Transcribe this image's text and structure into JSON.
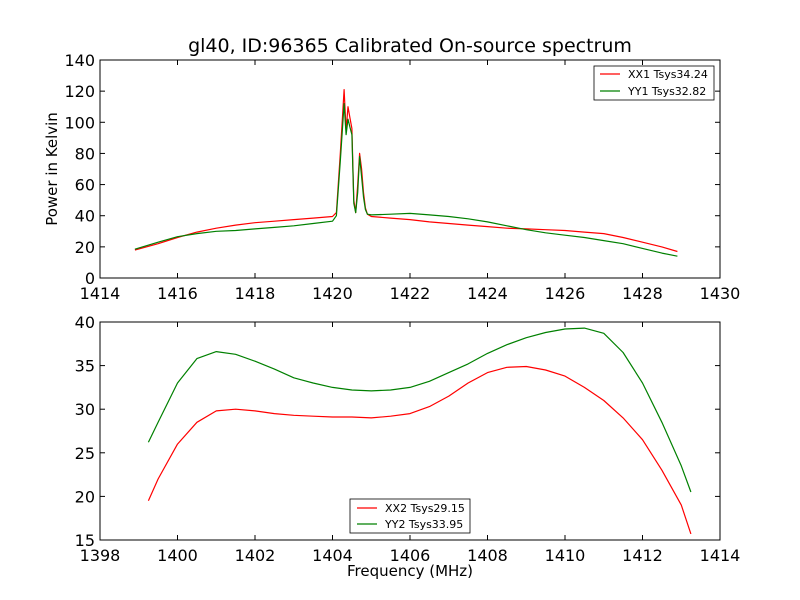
{
  "chart_data": [
    {
      "type": "line",
      "title": "gl40, ID:96365 Calibrated On-source spectrum",
      "xlabel": "",
      "ylabel": "Power in Kelvin",
      "xlim": [
        1414,
        1430
      ],
      "ylim": [
        0,
        140
      ],
      "xticks": [
        "1414",
        "1416",
        "1418",
        "1420",
        "1422",
        "1424",
        "1426",
        "1428",
        "1430"
      ],
      "yticks": [
        "0",
        "20",
        "40",
        "60",
        "80",
        "100",
        "120",
        "140"
      ],
      "grid": false,
      "legend_position": "top-right",
      "series": [
        {
          "name": "XX1 Tsys34.24",
          "color": "#ff0000",
          "x": [
            1414.9,
            1415.5,
            1416,
            1416.5,
            1417,
            1417.5,
            1418,
            1418.5,
            1419,
            1419.5,
            1420,
            1420.1,
            1420.2,
            1420.3,
            1420.35,
            1420.4,
            1420.45,
            1420.5,
            1420.55,
            1420.6,
            1420.65,
            1420.7,
            1420.75,
            1420.8,
            1420.85,
            1420.9,
            1421,
            1421.5,
            1422,
            1422.5,
            1423,
            1423.5,
            1424,
            1424.5,
            1425,
            1425.5,
            1426,
            1426.5,
            1427,
            1427.5,
            1428,
            1428.5,
            1428.9
          ],
          "values": [
            18,
            22,
            26,
            29.5,
            32,
            34,
            35.5,
            36.5,
            37.5,
            38.5,
            39.5,
            42,
            80,
            121,
            95,
            110,
            103,
            96,
            50,
            42,
            60,
            80,
            70,
            55,
            45,
            41,
            39.5,
            38.5,
            37.5,
            36,
            35,
            34,
            33,
            32,
            31.5,
            31,
            30.5,
            29.5,
            28.5,
            26,
            23,
            20,
            17
          ]
        },
        {
          "name": "YY1 Tsys32.82",
          "color": "#008000",
          "x": [
            1414.9,
            1415.5,
            1416,
            1416.5,
            1417,
            1417.5,
            1418,
            1418.5,
            1419,
            1419.5,
            1420,
            1420.1,
            1420.2,
            1420.3,
            1420.35,
            1420.4,
            1420.45,
            1420.5,
            1420.55,
            1420.6,
            1420.65,
            1420.7,
            1420.75,
            1420.8,
            1420.85,
            1420.9,
            1421,
            1421.5,
            1422,
            1422.5,
            1423,
            1423.5,
            1424,
            1424.5,
            1425,
            1425.5,
            1426,
            1426.5,
            1427,
            1427.5,
            1428,
            1428.5,
            1428.9
          ],
          "values": [
            18.5,
            23,
            26.5,
            28.5,
            30,
            30.5,
            31.5,
            32.5,
            33.5,
            35,
            36.5,
            40,
            75,
            112,
            92,
            102,
            97,
            92,
            48,
            42,
            55,
            78,
            65,
            52,
            44,
            41,
            40.5,
            41,
            41.5,
            40.5,
            39.5,
            38,
            36,
            33.5,
            31,
            29,
            27.5,
            26,
            24,
            22,
            19,
            16,
            14
          ]
        }
      ]
    },
    {
      "type": "line",
      "title": "",
      "xlabel": "Frequency (MHz)",
      "ylabel": "",
      "xlim": [
        1398,
        1414
      ],
      "ylim": [
        15,
        40
      ],
      "xticks": [
        "1398",
        "1400",
        "1402",
        "1404",
        "1406",
        "1408",
        "1410",
        "1412",
        "1414"
      ],
      "yticks": [
        "15",
        "20",
        "25",
        "30",
        "35",
        "40"
      ],
      "grid": false,
      "legend_position": "bottom-center",
      "series": [
        {
          "name": "XX2 Tsys29.15",
          "color": "#ff0000",
          "x": [
            1399.25,
            1399.5,
            1400,
            1400.5,
            1401,
            1401.5,
            1402,
            1402.5,
            1403,
            1403.5,
            1404,
            1404.5,
            1405,
            1405.5,
            1406,
            1406.5,
            1407,
            1407.5,
            1408,
            1408.5,
            1409,
            1409.5,
            1410,
            1410.5,
            1411,
            1411.5,
            1412,
            1412.5,
            1413,
            1413.25
          ],
          "values": [
            19.5,
            22,
            26,
            28.5,
            29.8,
            30,
            29.8,
            29.5,
            29.3,
            29.2,
            29.1,
            29.1,
            29,
            29.2,
            29.5,
            30.3,
            31.5,
            33,
            34.2,
            34.8,
            34.9,
            34.5,
            33.8,
            32.5,
            31,
            29,
            26.5,
            23,
            19,
            15.7
          ]
        },
        {
          "name": "YY2 Tsys33.95",
          "color": "#008000",
          "x": [
            1399.25,
            1399.5,
            1400,
            1400.5,
            1401,
            1401.5,
            1402,
            1402.5,
            1403,
            1403.5,
            1404,
            1404.5,
            1405,
            1405.5,
            1406,
            1406.5,
            1407,
            1407.5,
            1408,
            1408.5,
            1409,
            1409.5,
            1410,
            1410.5,
            1411,
            1411.5,
            1412,
            1412.5,
            1413,
            1413.25
          ],
          "values": [
            26.2,
            28.5,
            33,
            35.8,
            36.6,
            36.3,
            35.5,
            34.6,
            33.6,
            33,
            32.5,
            32.2,
            32.1,
            32.2,
            32.5,
            33.2,
            34.2,
            35.2,
            36.4,
            37.4,
            38.2,
            38.8,
            39.2,
            39.3,
            38.7,
            36.5,
            33,
            28.5,
            23.5,
            20.5
          ]
        }
      ]
    }
  ]
}
